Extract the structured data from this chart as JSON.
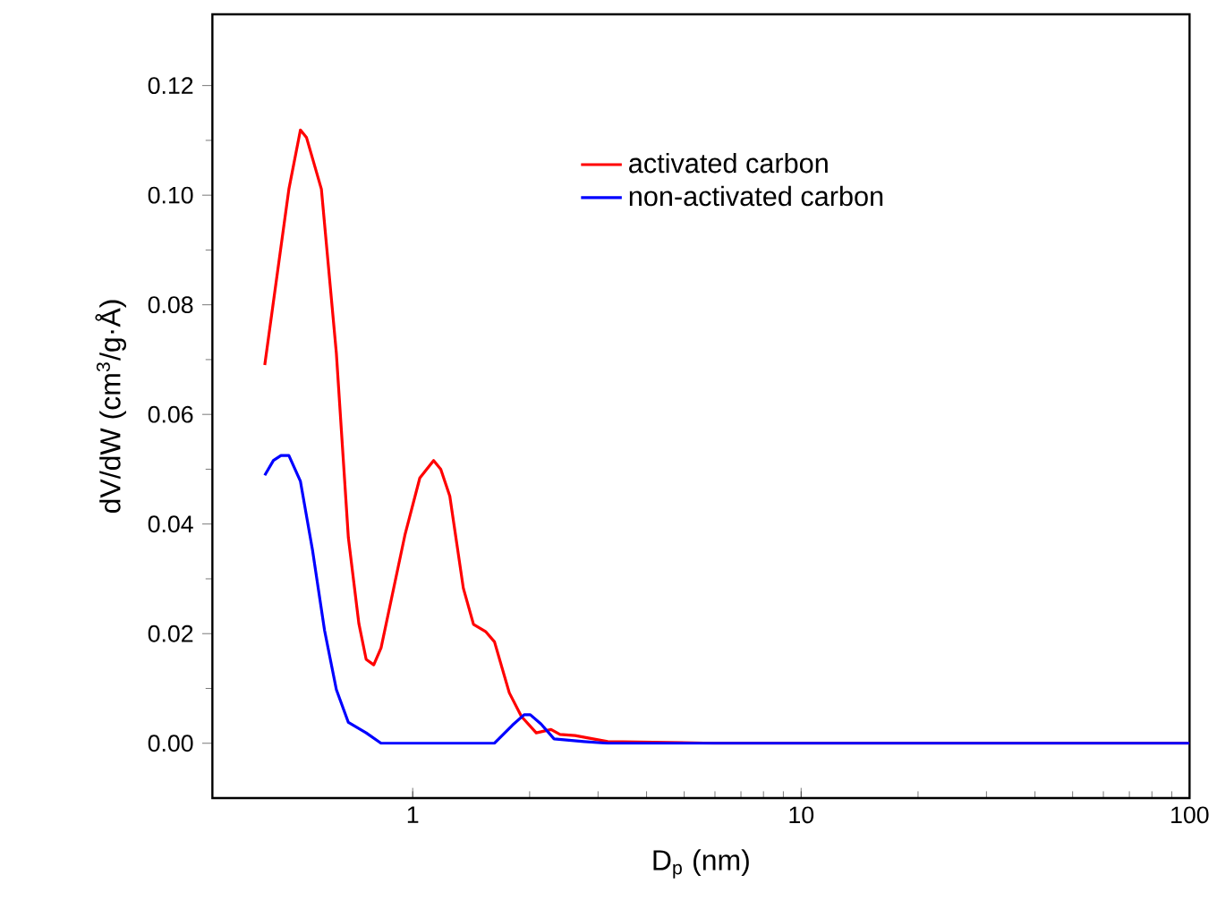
{
  "chart_data": {
    "type": "line",
    "xlabel": "D$_{p}$  (nm)",
    "ylabel": "dV/dW (cm$^{3}$/g·Å)",
    "log": "x",
    "xlim": [
      0.305,
      100
    ],
    "ylim": [
      -0.01,
      0.133
    ],
    "xticks": [
      1,
      10,
      100
    ],
    "yticks": [
      {
        "value": 0,
        "label": "0.00"
      },
      {
        "value": 0.02,
        "label": "0.02"
      },
      {
        "value": 0.04,
        "label": "0.04"
      },
      {
        "value": 0.06,
        "label": "0.06"
      },
      {
        "value": 0.08,
        "label": "0.08"
      },
      {
        "value": 0.1,
        "label": "0.10"
      },
      {
        "value": 0.12,
        "label": "0.12"
      }
    ],
    "legend": "top right",
    "grid": false,
    "marker": "none",
    "line_style": "solid",
    "series": [
      {
        "name": "activated carbon",
        "color": "#ff0000",
        "x": [
          0.416,
          0.48,
          0.514,
          0.533,
          0.582,
          0.636,
          0.683,
          0.727,
          0.759,
          0.794,
          0.829,
          0.955,
          1.043,
          1.132,
          1.181,
          1.246,
          1.35,
          1.434,
          1.54,
          1.624,
          1.773,
          1.905,
          2.08,
          2.271,
          2.394,
          2.618,
          3.177,
          6.0,
          100
        ],
        "values": [
          0.069,
          0.1011,
          0.1119,
          0.1105,
          0.1011,
          0.0712,
          0.0375,
          0.0218,
          0.0153,
          0.0143,
          0.0174,
          0.038,
          0.0484,
          0.0516,
          0.05,
          0.0451,
          0.0283,
          0.0217,
          0.0204,
          0.0185,
          0.0092,
          0.0049,
          0.0019,
          0.0025,
          0.0016,
          0.0014,
          0.0003,
          0,
          0
        ]
      },
      {
        "name": "non-activated carbon",
        "color": "#0000ff",
        "x": [
          0.416,
          0.438,
          0.458,
          0.48,
          0.514,
          0.552,
          0.593,
          0.636,
          0.683,
          0.759,
          0.829,
          1.624,
          1.806,
          1.936,
          2.008,
          2.14,
          2.312,
          2.762,
          3.177,
          6.0,
          100
        ],
        "values": [
          0.0489,
          0.0516,
          0.0525,
          0.0525,
          0.0478,
          0.0353,
          0.0206,
          0.0098,
          0.0038,
          0.0019,
          0,
          0,
          0.0033,
          0.0052,
          0.0052,
          0.0035,
          0.0008,
          0.0003,
          0,
          0,
          0
        ]
      }
    ]
  }
}
